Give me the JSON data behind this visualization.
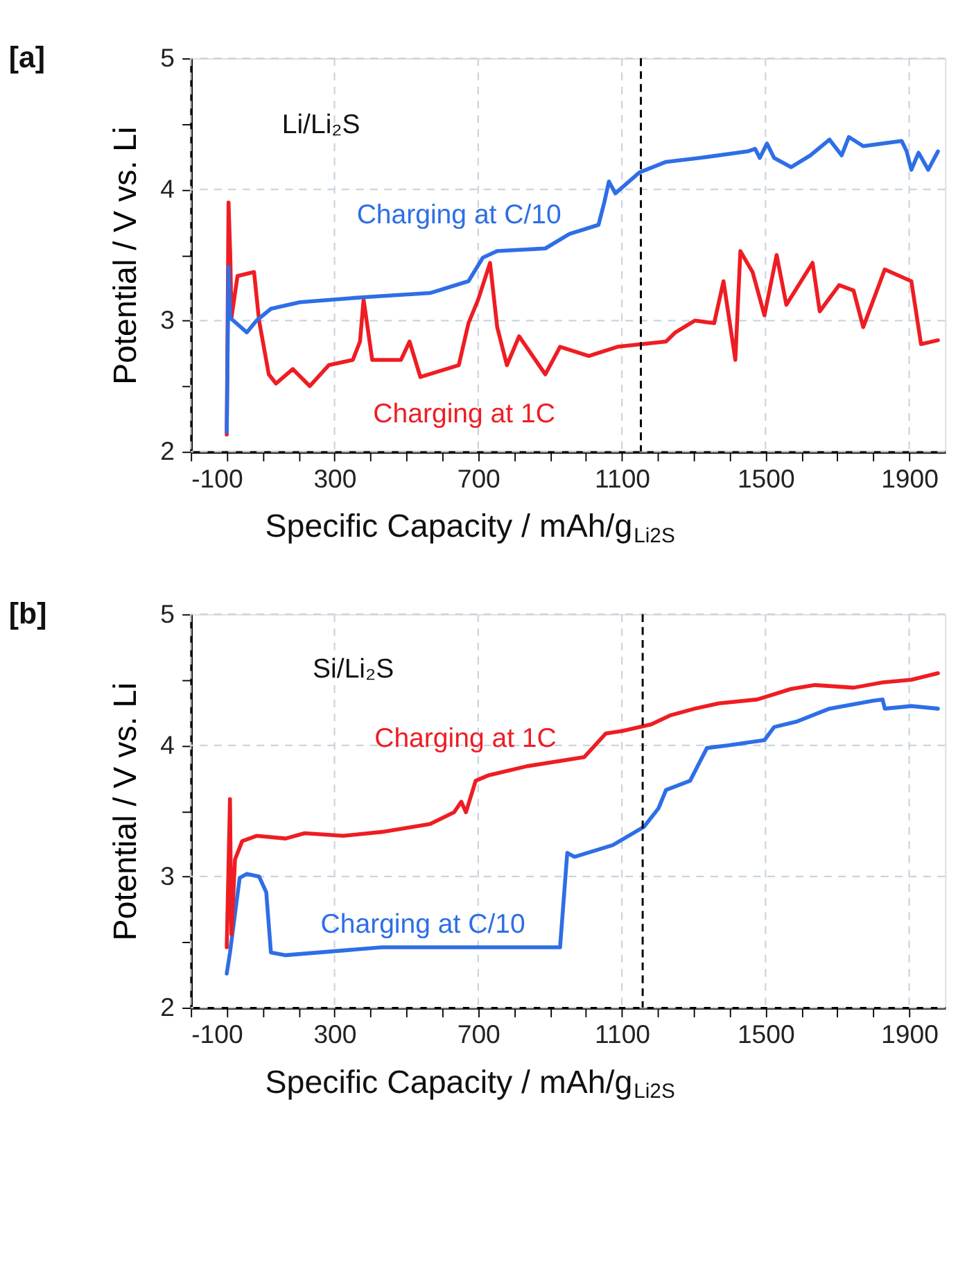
{
  "chart_data": [
    {
      "type": "line",
      "title": "[a]",
      "xlabel": "Specific Capacity / mAh/g$_{Li2S}$",
      "ylabel": "Potential / V vs. Li",
      "xlim": [
        -100,
        2000
      ],
      "xticks": [
        -100,
        {
          "value": 0,
          "label": null
        },
        {
          "value": 100,
          "label": null
        },
        {
          "value": 200,
          "label": null
        },
        300,
        {
          "value": 400,
          "label": null
        },
        {
          "value": 500,
          "label": null
        },
        {
          "value": 600,
          "label": null
        },
        700,
        {
          "value": 800,
          "label": null
        },
        {
          "value": 900,
          "label": null
        },
        {
          "value": 1000,
          "label": null
        },
        1100,
        {
          "value": 1200,
          "label": null
        },
        {
          "value": 1300,
          "label": null
        },
        {
          "value": 1400,
          "label": null
        },
        1500,
        {
          "value": 1600,
          "label": null
        },
        {
          "value": 1700,
          "label": null
        },
        {
          "value": 1800,
          "label": null
        },
        1900
      ],
      "ylim": [
        2,
        5
      ],
      "yticks": [
        2,
        {
          "value": 2.5,
          "label": null
        },
        3,
        {
          "value": 3.5,
          "label": null
        },
        4,
        {
          "value": 4.5,
          "label": null
        },
        5
      ],
      "grid": true,
      "legend": false,
      "marker": "none",
      "line_style": "solid",
      "annotations": [
        "Li/Li₂S"
      ],
      "ref_lines": [
        {
          "axis": "x",
          "value": 1153,
          "color": "#000000",
          "line_style": "dashed"
        }
      ],
      "series": [
        {
          "name": "Charging at C/10",
          "color": "#2e6ee6",
          "x": [
            0,
            5,
            10,
            56,
            83,
            123,
            204,
            391,
            566,
            673,
            713,
            753,
            887,
            954,
            1035,
            1051,
            1064,
            1082,
            1149,
            1223,
            1316,
            1450,
            1471,
            1484,
            1504,
            1524,
            1571,
            1625,
            1678,
            1712,
            1732,
            1772,
            1879,
            1893,
            1906,
            1926,
            1953,
            1980
          ],
          "values": [
            2.15,
            3.41,
            3.02,
            2.91,
            3.0,
            3.09,
            3.14,
            3.18,
            3.21,
            3.3,
            3.48,
            3.53,
            3.55,
            3.66,
            3.73,
            3.9,
            4.06,
            3.97,
            4.13,
            4.21,
            4.24,
            4.29,
            4.31,
            4.24,
            4.35,
            4.24,
            4.17,
            4.26,
            4.38,
            4.26,
            4.4,
            4.33,
            4.37,
            4.29,
            4.15,
            4.28,
            4.15,
            4.29
          ]
        },
        {
          "name": "Charging at 1C",
          "color": "#ee1d23",
          "x": [
            0,
            5,
            10,
            13,
            30,
            76,
            90,
            117,
            137,
            184,
            231,
            284,
            351,
            371,
            381,
            405,
            485,
            509,
            539,
            646,
            673,
            700,
            733,
            753,
            780,
            814,
            887,
            928,
            1008,
            1088,
            1223,
            1249,
            1303,
            1357,
            1383,
            1416,
            1430,
            1464,
            1497,
            1531,
            1558,
            1631,
            1651,
            1705,
            1745,
            1772,
            1832,
            1906,
            1933,
            1980
          ],
          "values": [
            2.13,
            3.9,
            3.48,
            3.02,
            3.34,
            3.37,
            3.0,
            2.59,
            2.52,
            2.63,
            2.5,
            2.66,
            2.7,
            2.84,
            3.16,
            2.7,
            2.7,
            2.84,
            2.57,
            2.66,
            2.98,
            3.16,
            3.44,
            2.95,
            2.66,
            2.88,
            2.59,
            2.8,
            2.73,
            2.8,
            2.84,
            2.91,
            3.0,
            2.98,
            3.3,
            2.7,
            3.53,
            3.37,
            3.04,
            3.5,
            3.12,
            3.44,
            3.07,
            3.27,
            3.23,
            2.95,
            3.39,
            3.3,
            2.82,
            2.85
          ]
        }
      ]
    },
    {
      "type": "line",
      "title": "[b]",
      "xlabel": "Specific Capacity / mAh/g$_{Li2S}$",
      "ylabel": "Potential / V vs. Li",
      "xlim": [
        -100,
        2000
      ],
      "xticks": [
        -100,
        {
          "value": 0,
          "label": null
        },
        {
          "value": 100,
          "label": null
        },
        {
          "value": 200,
          "label": null
        },
        300,
        {
          "value": 400,
          "label": null
        },
        {
          "value": 500,
          "label": null
        },
        {
          "value": 600,
          "label": null
        },
        700,
        {
          "value": 800,
          "label": null
        },
        {
          "value": 900,
          "label": null
        },
        {
          "value": 1000,
          "label": null
        },
        1100,
        {
          "value": 1200,
          "label": null
        },
        {
          "value": 1300,
          "label": null
        },
        {
          "value": 1400,
          "label": null
        },
        1500,
        {
          "value": 1600,
          "label": null
        },
        {
          "value": 1700,
          "label": null
        },
        {
          "value": 1800,
          "label": null
        },
        1900
      ],
      "ylim": [
        2,
        5
      ],
      "yticks": [
        2,
        {
          "value": 2.5,
          "label": null
        },
        3,
        {
          "value": 3.5,
          "label": null
        },
        4,
        {
          "value": 4.5,
          "label": null
        },
        5
      ],
      "grid": true,
      "legend": false,
      "marker": "none",
      "line_style": "solid",
      "annotations": [
        "Si/Li₂S"
      ],
      "ref_lines": [
        {
          "axis": "x",
          "value": 1158,
          "color": "#000000",
          "line_style": "dashed"
        }
      ],
      "series": [
        {
          "name": "Charging at 1C",
          "color": "#ee1d23",
          "x": [
            0,
            9,
            13,
            23,
            43,
            83,
            164,
            217,
            324,
            432,
            566,
            633,
            653,
            666,
            693,
            727,
            834,
            995,
            1055,
            1102,
            1182,
            1236,
            1303,
            1370,
            1477,
            1571,
            1638,
            1745,
            1826,
            1906,
            1980
          ],
          "values": [
            2.46,
            3.59,
            2.56,
            3.13,
            3.27,
            3.31,
            3.29,
            3.33,
            3.31,
            3.34,
            3.4,
            3.49,
            3.57,
            3.49,
            3.73,
            3.77,
            3.84,
            3.91,
            4.09,
            4.11,
            4.16,
            4.23,
            4.28,
            4.32,
            4.35,
            4.43,
            4.46,
            4.44,
            4.48,
            4.5,
            4.55
          ]
        },
        {
          "name": "Charging at C/10",
          "color": "#2e6ee6",
          "x": [
            0,
            9,
            36,
            56,
            90,
            110,
            123,
            164,
            432,
            928,
            948,
            968,
            1075,
            1162,
            1202,
            1223,
            1290,
            1337,
            1397,
            1497,
            1524,
            1585,
            1678,
            1799,
            1826,
            1832,
            1906,
            1980
          ],
          "values": [
            2.26,
            2.42,
            2.99,
            3.02,
            3.0,
            2.88,
            2.42,
            2.4,
            2.46,
            2.46,
            3.18,
            3.15,
            3.24,
            3.38,
            3.52,
            3.66,
            3.73,
            3.98,
            4.0,
            4.04,
            4.14,
            4.18,
            4.28,
            4.34,
            4.35,
            4.28,
            4.3,
            4.28
          ]
        }
      ]
    }
  ]
}
